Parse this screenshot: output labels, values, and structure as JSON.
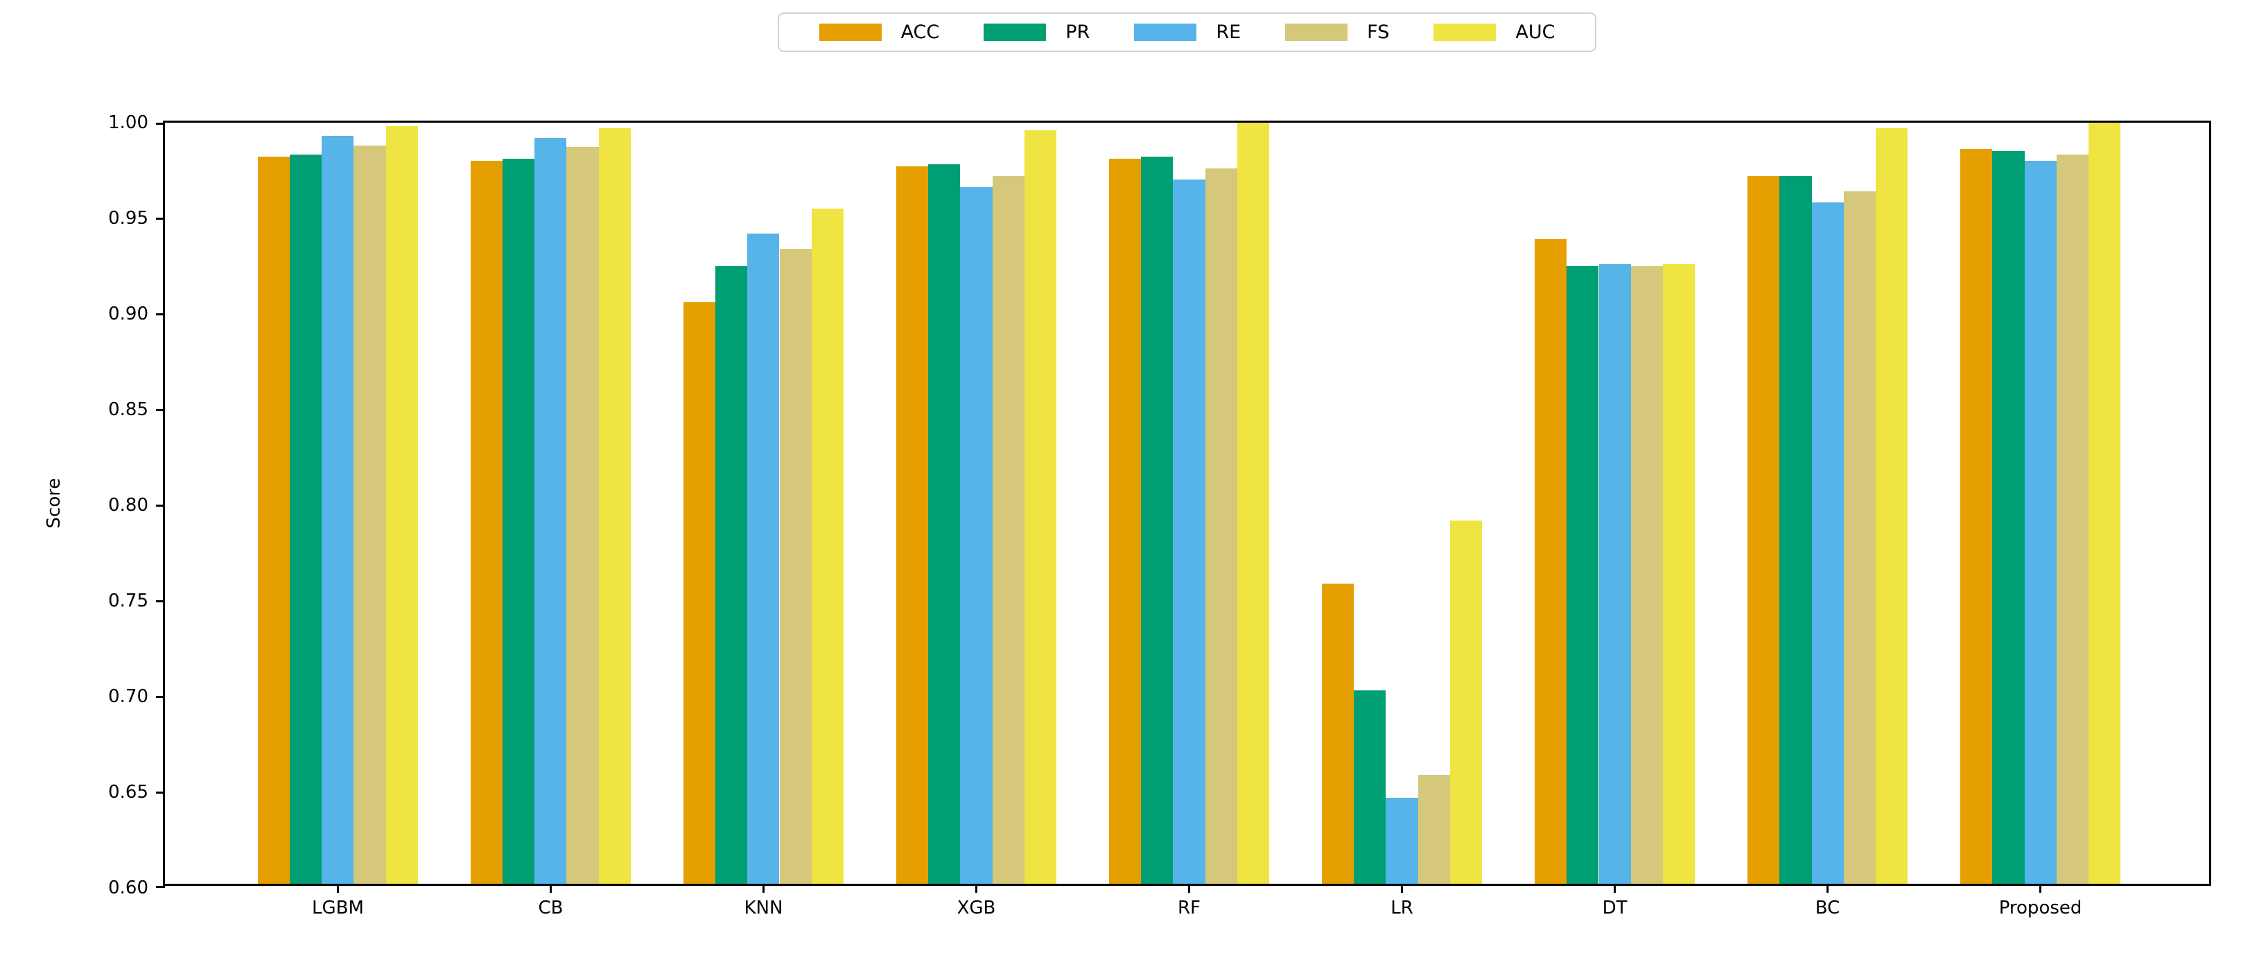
{
  "chart_data": {
    "type": "bar",
    "title": "",
    "xlabel": "",
    "ylabel": "Score",
    "ylim": [
      0.6,
      1.0
    ],
    "yticks": [
      0.6,
      0.65,
      0.7,
      0.75,
      0.8,
      0.85,
      0.9,
      0.95,
      1.0
    ],
    "grid": false,
    "legend_position": "top-center-outside",
    "categories": [
      "LGBM",
      "CB",
      "KNN",
      "XGB",
      "RF",
      "LR",
      "DT",
      "BC",
      "Proposed"
    ],
    "series": [
      {
        "name": "ACC",
        "color": "#E69F00",
        "values": [
          0.98,
          0.978,
          0.904,
          0.975,
          0.979,
          0.757,
          0.937,
          0.97,
          0.984
        ]
      },
      {
        "name": "PR",
        "color": "#009E73",
        "values": [
          0.981,
          0.979,
          0.923,
          0.976,
          0.98,
          0.701,
          0.923,
          0.97,
          0.983
        ]
      },
      {
        "name": "RE",
        "color": "#56B4E9",
        "values": [
          0.991,
          0.99,
          0.94,
          0.964,
          0.968,
          0.645,
          0.924,
          0.956,
          0.978
        ]
      },
      {
        "name": "FS",
        "color": "#D5C87B",
        "values": [
          0.986,
          0.985,
          0.932,
          0.97,
          0.974,
          0.657,
          0.923,
          0.962,
          0.981
        ]
      },
      {
        "name": "AUC",
        "color": "#F0E442",
        "values": [
          0.996,
          0.995,
          0.953,
          0.994,
          0.998,
          0.79,
          0.924,
          0.995,
          0.998
        ]
      }
    ]
  }
}
